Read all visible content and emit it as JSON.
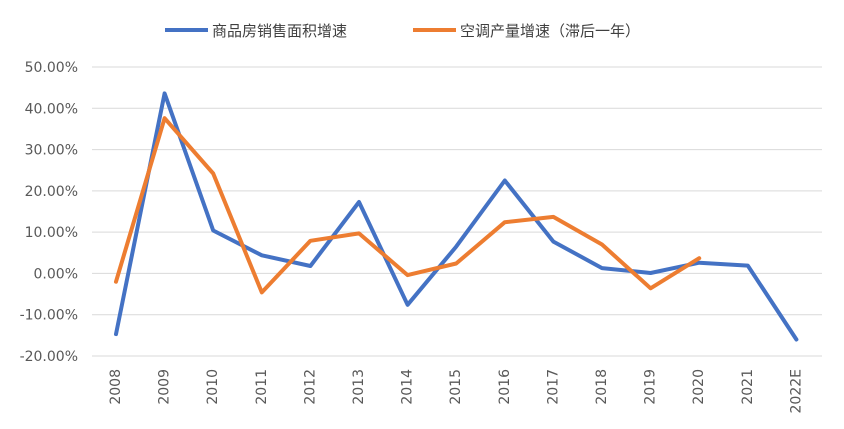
{
  "chart_data": {
    "type": "line",
    "title": "",
    "xlabel": "",
    "ylabel": "",
    "x": [
      "2008",
      "2009",
      "2010",
      "2011",
      "2012",
      "2013",
      "2014",
      "2015",
      "2016",
      "2017",
      "2018",
      "2019",
      "2020",
      "2021",
      "2022E"
    ],
    "ylim": [
      -0.2,
      0.5
    ],
    "yticks": [
      -0.2,
      -0.1,
      0.0,
      0.1,
      0.2,
      0.3,
      0.4,
      0.5
    ],
    "ytick_labels": [
      "-20.00%",
      "-10.00%",
      "0.00%",
      "10.00%",
      "20.00%",
      "30.00%",
      "40.00%",
      "50.00%"
    ],
    "grid": "horizontal",
    "legend_position": "top",
    "series": [
      {
        "name": "商品房销售面积增速",
        "color": "#4472C4",
        "values": [
          -0.147,
          0.436,
          0.104,
          0.044,
          0.018,
          0.173,
          -0.076,
          0.065,
          0.225,
          0.077,
          0.013,
          0.001,
          0.026,
          0.019,
          -0.16
        ]
      },
      {
        "name": "空调产量增速（滞后一年）",
        "color": "#ED7D31",
        "values": [
          -0.02,
          0.376,
          0.242,
          -0.046,
          0.079,
          0.097,
          -0.004,
          0.024,
          0.124,
          0.137,
          0.07,
          -0.036,
          0.037,
          null,
          null
        ]
      }
    ]
  }
}
